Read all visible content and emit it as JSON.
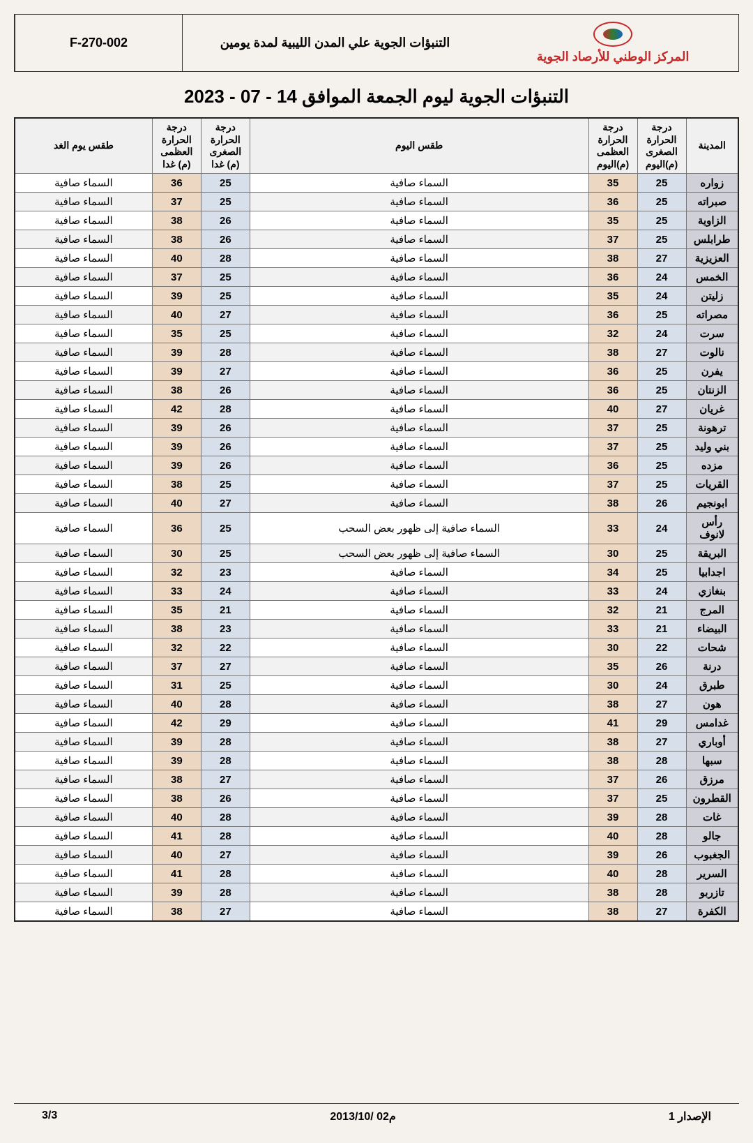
{
  "header": {
    "code": "F-270-002",
    "title": "التنبؤات الجوية علي المدن الليبية لمدة يومين",
    "org": "المركز الوطني للأرصاد الجوية"
  },
  "page_title": "التنبؤات الجوية ليوم الجمعة الموافق 14 - 07 - 2023",
  "columns": {
    "city": "المدينة",
    "min_today": "درجة الحرارة الصغرى (م)اليوم",
    "max_today": "درجة الحرارة العظمى (م)اليوم",
    "cond_today": "طقس اليوم",
    "min_tom": "درجة الحرارة الصغرى (م) غدا",
    "max_tom": "درجة الحرارة العظمى (م) غدا",
    "cond_tom": "طقس يوم الغد"
  },
  "colors": {
    "city_bg": "#d0d0d8",
    "min_bg": "#d6dfea",
    "max_bg": "#ecd8c2",
    "border": "#777777",
    "org_text": "#c62828"
  },
  "clear": "السماء صافية",
  "partly": "السماء صافية إلى ظهور بعض السحب",
  "rows": [
    {
      "city": "زواره",
      "min_t": 25,
      "max_t": 35,
      "cond_t": "clear",
      "min_g": 25,
      "max_g": 36,
      "cond_g": "clear"
    },
    {
      "city": "صبراته",
      "min_t": 25,
      "max_t": 36,
      "cond_t": "clear",
      "min_g": 25,
      "max_g": 37,
      "cond_g": "clear"
    },
    {
      "city": "الزاوية",
      "min_t": 25,
      "max_t": 35,
      "cond_t": "clear",
      "min_g": 26,
      "max_g": 38,
      "cond_g": "clear"
    },
    {
      "city": "طرابلس",
      "min_t": 25,
      "max_t": 37,
      "cond_t": "clear",
      "min_g": 26,
      "max_g": 38,
      "cond_g": "clear"
    },
    {
      "city": "العزيزية",
      "min_t": 27,
      "max_t": 38,
      "cond_t": "clear",
      "min_g": 28,
      "max_g": 40,
      "cond_g": "clear"
    },
    {
      "city": "الخمس",
      "min_t": 24,
      "max_t": 36,
      "cond_t": "clear",
      "min_g": 25,
      "max_g": 37,
      "cond_g": "clear"
    },
    {
      "city": "زليتن",
      "min_t": 24,
      "max_t": 35,
      "cond_t": "clear",
      "min_g": 25,
      "max_g": 39,
      "cond_g": "clear"
    },
    {
      "city": "مصراته",
      "min_t": 25,
      "max_t": 36,
      "cond_t": "clear",
      "min_g": 27,
      "max_g": 40,
      "cond_g": "clear"
    },
    {
      "city": "سرت",
      "min_t": 24,
      "max_t": 32,
      "cond_t": "clear",
      "min_g": 25,
      "max_g": 35,
      "cond_g": "clear"
    },
    {
      "city": "نالوت",
      "min_t": 27,
      "max_t": 38,
      "cond_t": "clear",
      "min_g": 28,
      "max_g": 39,
      "cond_g": "clear"
    },
    {
      "city": "يفرن",
      "min_t": 25,
      "max_t": 36,
      "cond_t": "clear",
      "min_g": 27,
      "max_g": 39,
      "cond_g": "clear"
    },
    {
      "city": "الزنتان",
      "min_t": 25,
      "max_t": 36,
      "cond_t": "clear",
      "min_g": 26,
      "max_g": 38,
      "cond_g": "clear"
    },
    {
      "city": "غريان",
      "min_t": 27,
      "max_t": 40,
      "cond_t": "clear",
      "min_g": 28,
      "max_g": 42,
      "cond_g": "clear"
    },
    {
      "city": "ترهونة",
      "min_t": 25,
      "max_t": 37,
      "cond_t": "clear",
      "min_g": 26,
      "max_g": 39,
      "cond_g": "clear"
    },
    {
      "city": "بني وليد",
      "min_t": 25,
      "max_t": 37,
      "cond_t": "clear",
      "min_g": 26,
      "max_g": 39,
      "cond_g": "clear"
    },
    {
      "city": "مزده",
      "min_t": 25,
      "max_t": 36,
      "cond_t": "clear",
      "min_g": 26,
      "max_g": 39,
      "cond_g": "clear"
    },
    {
      "city": "القريات",
      "min_t": 25,
      "max_t": 37,
      "cond_t": "clear",
      "min_g": 25,
      "max_g": 38,
      "cond_g": "clear"
    },
    {
      "city": "ابونجيم",
      "min_t": 26,
      "max_t": 38,
      "cond_t": "clear",
      "min_g": 27,
      "max_g": 40,
      "cond_g": "clear"
    },
    {
      "city": "رأس لانوف",
      "min_t": 24,
      "max_t": 33,
      "cond_t": "partly",
      "min_g": 25,
      "max_g": 36,
      "cond_g": "clear"
    },
    {
      "city": "البريقة",
      "min_t": 25,
      "max_t": 30,
      "cond_t": "partly",
      "min_g": 25,
      "max_g": 30,
      "cond_g": "clear"
    },
    {
      "city": "اجدابيا",
      "min_t": 25,
      "max_t": 34,
      "cond_t": "clear",
      "min_g": 23,
      "max_g": 32,
      "cond_g": "clear"
    },
    {
      "city": "بنغازي",
      "min_t": 24,
      "max_t": 33,
      "cond_t": "clear",
      "min_g": 24,
      "max_g": 33,
      "cond_g": "clear"
    },
    {
      "city": "المرج",
      "min_t": 21,
      "max_t": 32,
      "cond_t": "clear",
      "min_g": 21,
      "max_g": 35,
      "cond_g": "clear"
    },
    {
      "city": "البيضاء",
      "min_t": 21,
      "max_t": 33,
      "cond_t": "clear",
      "min_g": 23,
      "max_g": 38,
      "cond_g": "clear"
    },
    {
      "city": "شحات",
      "min_t": 22,
      "max_t": 30,
      "cond_t": "clear",
      "min_g": 22,
      "max_g": 32,
      "cond_g": "clear"
    },
    {
      "city": "درنة",
      "min_t": 26,
      "max_t": 35,
      "cond_t": "clear",
      "min_g": 27,
      "max_g": 37,
      "cond_g": "clear"
    },
    {
      "city": "طبرق",
      "min_t": 24,
      "max_t": 30,
      "cond_t": "clear",
      "min_g": 25,
      "max_g": 31,
      "cond_g": "clear"
    },
    {
      "city": "هون",
      "min_t": 27,
      "max_t": 38,
      "cond_t": "clear",
      "min_g": 28,
      "max_g": 40,
      "cond_g": "clear"
    },
    {
      "city": "غدامس",
      "min_t": 29,
      "max_t": 41,
      "cond_t": "clear",
      "min_g": 29,
      "max_g": 42,
      "cond_g": "clear"
    },
    {
      "city": "أوباري",
      "min_t": 27,
      "max_t": 38,
      "cond_t": "clear",
      "min_g": 28,
      "max_g": 39,
      "cond_g": "clear"
    },
    {
      "city": "سبها",
      "min_t": 28,
      "max_t": 38,
      "cond_t": "clear",
      "min_g": 28,
      "max_g": 39,
      "cond_g": "clear"
    },
    {
      "city": "مرزق",
      "min_t": 26,
      "max_t": 37,
      "cond_t": "clear",
      "min_g": 27,
      "max_g": 38,
      "cond_g": "clear"
    },
    {
      "city": "القطرون",
      "min_t": 25,
      "max_t": 37,
      "cond_t": "clear",
      "min_g": 26,
      "max_g": 38,
      "cond_g": "clear"
    },
    {
      "city": "غات",
      "min_t": 28,
      "max_t": 39,
      "cond_t": "clear",
      "min_g": 28,
      "max_g": 40,
      "cond_g": "clear"
    },
    {
      "city": "جالو",
      "min_t": 28,
      "max_t": 40,
      "cond_t": "clear",
      "min_g": 28,
      "max_g": 41,
      "cond_g": "clear"
    },
    {
      "city": "الجغبوب",
      "min_t": 26,
      "max_t": 39,
      "cond_t": "clear",
      "min_g": 27,
      "max_g": 40,
      "cond_g": "clear"
    },
    {
      "city": "السرير",
      "min_t": 28,
      "max_t": 40,
      "cond_t": "clear",
      "min_g": 28,
      "max_g": 41,
      "cond_g": "clear"
    },
    {
      "city": "تازربو",
      "min_t": 28,
      "max_t": 38,
      "cond_t": "clear",
      "min_g": 28,
      "max_g": 39,
      "cond_g": "clear"
    },
    {
      "city": "الكفرة",
      "min_t": 27,
      "max_t": 38,
      "cond_t": "clear",
      "min_g": 27,
      "max_g": 38,
      "cond_g": "clear"
    }
  ],
  "footer": {
    "issue": "الإصدار 1",
    "date": "2013/10/ 02م",
    "page": "3/3"
  }
}
